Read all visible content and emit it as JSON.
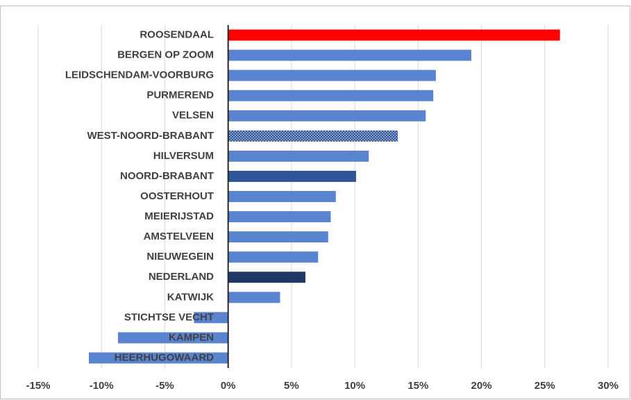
{
  "chart_data": {
    "type": "hbar",
    "categories": [
      "ROOSENDAAL",
      "BERGEN OP ZOOM",
      "LEIDSCHENDAM-VOORBURG",
      "PURMEREND",
      "VELSEN",
      "WEST-NOORD-BRABANT",
      "HILVERSUM",
      "NOORD-BRABANT",
      "OOSTERHOUT",
      "MEIERIJSTAD",
      "AMSTELVEEN",
      "NIEUWEGEIN",
      "NEDERLAND",
      "KATWIJK",
      "STICHTSE VECHT",
      "KAMPEN",
      "HEERHUGOWAARD"
    ],
    "values": [
      26.2,
      19.2,
      16.4,
      16.2,
      15.6,
      13.4,
      11.1,
      10.1,
      8.5,
      8.1,
      7.9,
      7.1,
      6.1,
      4.1,
      -2.7,
      -8.7,
      -11.0
    ],
    "colors": [
      "#ff0000",
      "#5b84d0",
      "#5b84d0",
      "#5b84d0",
      "#5b84d0",
      "#4a6fb5",
      "#5b84d0",
      "#2f5597",
      "#5b84d0",
      "#5b84d0",
      "#5b84d0",
      "#5b84d0",
      "#1f3864",
      "#5b84d0",
      "#5b84d0",
      "#5b84d0",
      "#5b84d0"
    ],
    "patterned": [
      false,
      false,
      false,
      false,
      false,
      true,
      false,
      false,
      false,
      false,
      false,
      false,
      false,
      false,
      false,
      false,
      false
    ],
    "xlim": [
      -15,
      30
    ],
    "xticks": [
      {
        "value": -15,
        "label": "-15%"
      },
      {
        "value": -10,
        "label": "-10%"
      },
      {
        "value": -5,
        "label": "-5%"
      },
      {
        "value": 0,
        "label": "0%"
      },
      {
        "value": 5,
        "label": "5%"
      },
      {
        "value": 10,
        "label": "10%"
      },
      {
        "value": 15,
        "label": "15%"
      },
      {
        "value": 20,
        "label": "20%"
      },
      {
        "value": 25,
        "label": "25%"
      },
      {
        "value": 30,
        "label": "30%"
      }
    ],
    "grid": true
  }
}
